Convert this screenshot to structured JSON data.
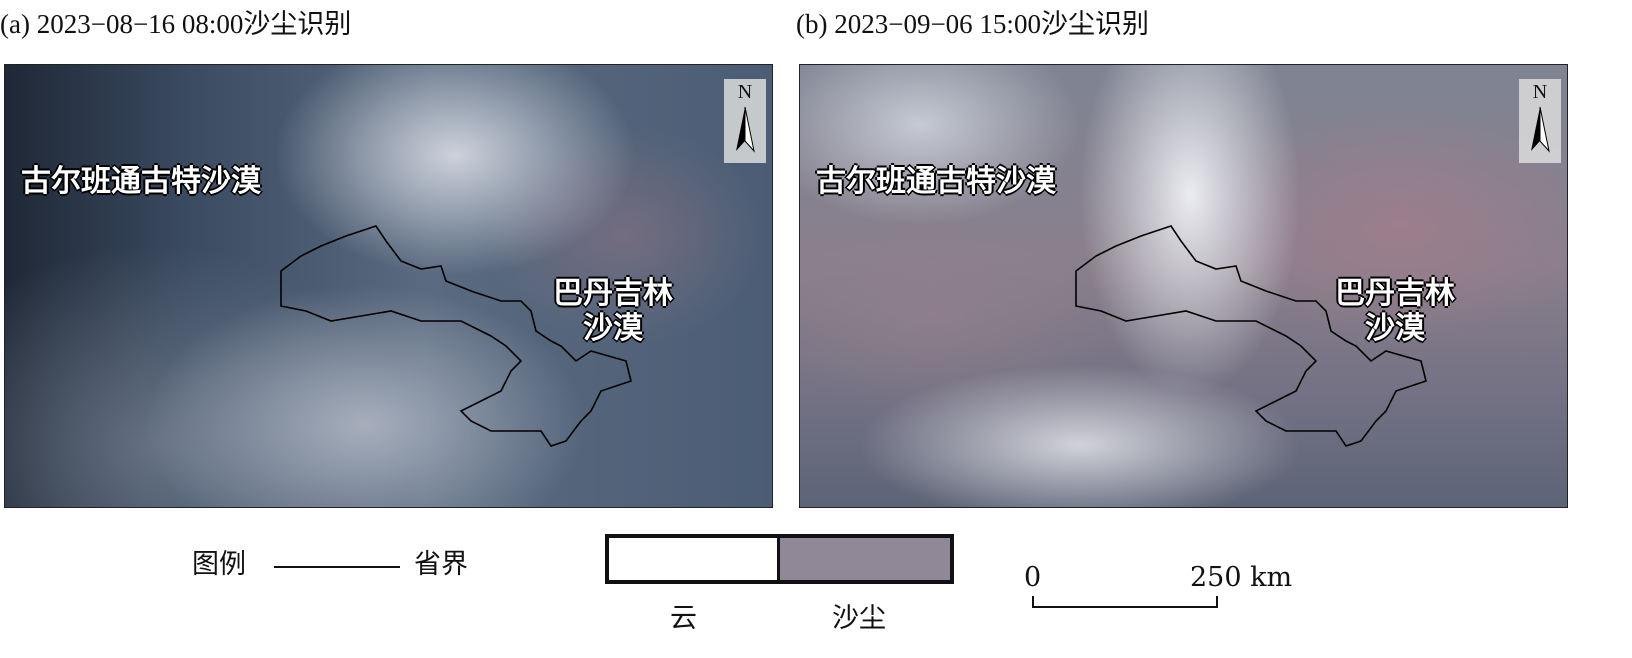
{
  "panels": [
    {
      "title": "(a) 2023−08−16 08:00沙尘识别",
      "labels": {
        "gobi": "古尔班通古特沙漠",
        "badain_line1": "巴丹吉林",
        "badain_line2": "沙漠"
      },
      "north": "N"
    },
    {
      "title": "(b) 2023−09−06 15:00沙尘识别",
      "labels": {
        "gobi": "古尔班通古特沙漠",
        "badain_line1": "巴丹吉林",
        "badain_line2": "沙漠"
      },
      "north": "N"
    }
  ],
  "legend": {
    "title": "图例",
    "boundary_label": "省界",
    "cloud_label": "云",
    "dust_label": "沙尘",
    "cloud_color": "#ffffff",
    "dust_color": "#908797"
  },
  "scale_bar": {
    "start": "0",
    "end": "250 km"
  }
}
